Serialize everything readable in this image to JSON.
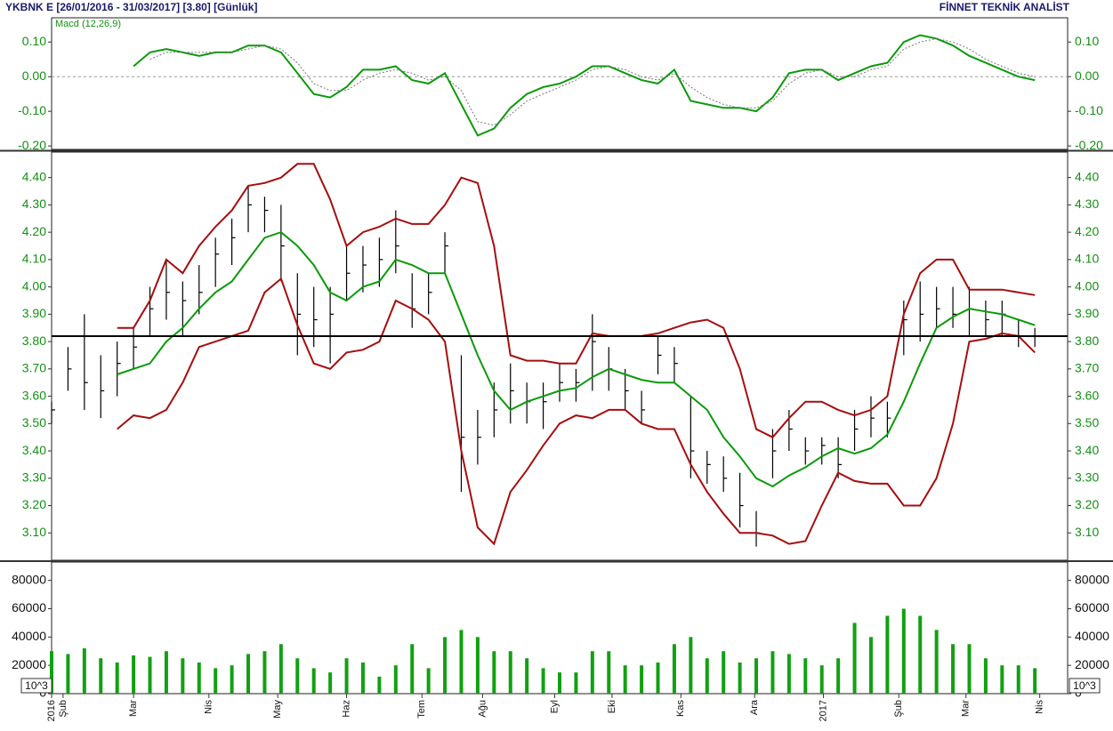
{
  "header": {
    "symbol": "YKBNK E  [26/01/2016 - 31/03/2017]  [3.80]  [Günlük]",
    "brand": "FİNNET TEKNİK ANALİST"
  },
  "chart_data": [
    {
      "type": "line",
      "title": "Macd (12,26,9)",
      "ylim": [
        -0.21,
        0.17
      ],
      "yticks": [
        {
          "value": 0.1,
          "label": "0.10"
        },
        {
          "value": 0,
          "label": "0.00"
        },
        {
          "value": -0.1,
          "label": "-0.10"
        },
        {
          "value": -0.2,
          "label": "-0.20"
        }
      ],
      "series": [
        {
          "color": "#0a9a0a",
          "style": "solid",
          "values": [
            null,
            null,
            null,
            null,
            null,
            0.03,
            0.07,
            0.08,
            0.07,
            0.06,
            0.07,
            0.07,
            0.09,
            0.09,
            0.07,
            0.01,
            -0.05,
            -0.06,
            -0.03,
            0.02,
            0.02,
            0.03,
            -0.01,
            -0.02,
            0.01,
            -0.08,
            -0.17,
            -0.15,
            -0.09,
            -0.05,
            -0.03,
            -0.02,
            0.0,
            0.03,
            0.03,
            0.01,
            -0.01,
            -0.02,
            0.02,
            -0.07,
            -0.08,
            -0.09,
            -0.09,
            -0.1,
            -0.06,
            0.01,
            0.02,
            0.02,
            -0.01,
            0.01,
            0.03,
            0.04,
            0.1,
            0.12,
            0.11,
            0.09,
            0.06,
            0.04,
            0.02,
            0.0,
            -0.01
          ]
        },
        {
          "color": "#777777",
          "style": "dotted",
          "values": [
            null,
            null,
            null,
            null,
            null,
            null,
            0.05,
            0.07,
            0.07,
            0.07,
            0.07,
            0.07,
            0.08,
            0.09,
            0.08,
            0.04,
            -0.02,
            -0.04,
            -0.04,
            -0.01,
            0.01,
            0.02,
            0.01,
            -0.01,
            0.0,
            -0.04,
            -0.13,
            -0.14,
            -0.11,
            -0.07,
            -0.05,
            -0.03,
            -0.01,
            0.02,
            0.03,
            0.02,
            0.0,
            -0.01,
            0.01,
            -0.03,
            -0.06,
            -0.08,
            -0.09,
            -0.09,
            -0.07,
            -0.02,
            0.01,
            0.02,
            0.0,
            0.0,
            0.02,
            0.03,
            0.08,
            0.1,
            0.11,
            0.1,
            0.08,
            0.05,
            0.03,
            0.01,
            0.0
          ]
        }
      ]
    },
    {
      "type": "hlc",
      "color": "#000000",
      "ylim": [
        3.0,
        4.49
      ],
      "yticks": [
        {
          "value": 4.4,
          "label": "4.40"
        },
        {
          "value": 4.3,
          "label": "4.30"
        },
        {
          "value": 4.2,
          "label": "4.20"
        },
        {
          "value": 4.1,
          "label": "4.10"
        },
        {
          "value": 4.0,
          "label": "4.00"
        },
        {
          "value": 3.9,
          "label": "3.90"
        },
        {
          "value": 3.8,
          "label": "3.80"
        },
        {
          "value": 3.7,
          "label": "3.70"
        },
        {
          "value": 3.6,
          "label": "3.60"
        },
        {
          "value": 3.5,
          "label": "3.50"
        },
        {
          "value": 3.4,
          "label": "3.40"
        },
        {
          "value": 3.3,
          "label": "3.30"
        },
        {
          "value": 3.2,
          "label": "3.20"
        },
        {
          "value": 3.1,
          "label": "3.10"
        }
      ],
      "high": [
        3.58,
        3.78,
        3.9,
        3.75,
        3.8,
        3.85,
        4.0,
        4.1,
        4.02,
        4.08,
        4.18,
        4.25,
        4.37,
        4.33,
        4.3,
        4.05,
        4.0,
        4.0,
        4.15,
        4.15,
        4.18,
        4.28,
        4.05,
        4.05,
        4.2,
        3.75,
        3.55,
        3.65,
        3.72,
        3.65,
        3.65,
        3.72,
        3.7,
        3.9,
        3.78,
        3.7,
        3.62,
        3.82,
        3.78,
        3.6,
        3.4,
        3.38,
        3.32,
        3.18,
        3.48,
        3.55,
        3.45,
        3.45,
        3.45,
        3.55,
        3.6,
        3.58,
        3.95,
        4.02,
        4.0,
        4.0,
        4.0,
        3.95,
        3.95,
        3.88,
        3.85
      ],
      "low": [
        3.5,
        3.62,
        3.55,
        3.52,
        3.6,
        3.7,
        3.82,
        3.88,
        3.82,
        3.9,
        4.0,
        4.08,
        4.2,
        4.2,
        4.02,
        3.75,
        3.78,
        3.72,
        3.95,
        3.98,
        4.0,
        4.05,
        3.85,
        3.9,
        4.05,
        3.25,
        3.35,
        3.45,
        3.5,
        3.5,
        3.48,
        3.58,
        3.58,
        3.62,
        3.62,
        3.55,
        3.5,
        3.68,
        3.65,
        3.3,
        3.28,
        3.25,
        3.12,
        3.05,
        3.3,
        3.4,
        3.35,
        3.35,
        3.3,
        3.4,
        3.45,
        3.45,
        3.75,
        3.8,
        3.85,
        3.85,
        3.82,
        3.82,
        3.82,
        3.78,
        3.78
      ],
      "close": [
        3.55,
        3.7,
        3.65,
        3.62,
        3.72,
        3.78,
        3.92,
        3.98,
        3.95,
        3.98,
        4.12,
        4.18,
        4.3,
        4.28,
        4.15,
        3.9,
        3.88,
        3.9,
        4.05,
        4.08,
        4.1,
        4.15,
        3.92,
        3.98,
        4.15,
        3.45,
        3.45,
        3.55,
        3.62,
        3.58,
        3.58,
        3.65,
        3.65,
        3.8,
        3.7,
        3.62,
        3.55,
        3.75,
        3.72,
        3.4,
        3.35,
        3.3,
        3.2,
        3.1,
        3.4,
        3.48,
        3.4,
        3.42,
        3.35,
        3.48,
        3.52,
        3.52,
        3.88,
        3.9,
        3.92,
        3.9,
        3.92,
        3.88,
        3.9,
        3.82,
        3.82
      ],
      "reference_line": 3.82,
      "series": [
        {
          "color": "#a50e0e",
          "style": "solid",
          "values": [
            null,
            null,
            null,
            null,
            3.85,
            3.85,
            3.95,
            4.1,
            4.05,
            4.15,
            4.22,
            4.28,
            4.37,
            4.38,
            4.4,
            4.45,
            4.45,
            4.32,
            4.15,
            4.2,
            4.22,
            4.25,
            4.23,
            4.23,
            4.3,
            4.4,
            4.38,
            4.15,
            3.75,
            3.73,
            3.73,
            3.72,
            3.72,
            3.83,
            3.82,
            3.82,
            3.82,
            3.83,
            3.85,
            3.87,
            3.88,
            3.85,
            3.7,
            3.48,
            3.45,
            3.52,
            3.58,
            3.58,
            3.55,
            3.53,
            3.55,
            3.6,
            3.9,
            4.05,
            4.1,
            4.1,
            3.99,
            3.99,
            3.99,
            3.98,
            3.97
          ]
        },
        {
          "color": "#0a9a0a",
          "style": "solid",
          "values": [
            null,
            null,
            null,
            null,
            3.68,
            3.7,
            3.72,
            3.8,
            3.85,
            3.92,
            3.98,
            4.02,
            4.1,
            4.18,
            4.2,
            4.15,
            4.08,
            3.98,
            3.95,
            4.0,
            4.02,
            4.1,
            4.08,
            4.05,
            4.05,
            3.9,
            3.75,
            3.62,
            3.55,
            3.58,
            3.6,
            3.62,
            3.63,
            3.67,
            3.7,
            3.68,
            3.66,
            3.65,
            3.65,
            3.6,
            3.55,
            3.45,
            3.38,
            3.3,
            3.27,
            3.31,
            3.34,
            3.38,
            3.41,
            3.39,
            3.41,
            3.46,
            3.58,
            3.72,
            3.85,
            3.89,
            3.92,
            3.91,
            3.9,
            3.88,
            3.86
          ]
        },
        {
          "color": "#a50e0e",
          "style": "solid",
          "values": [
            null,
            null,
            null,
            null,
            3.48,
            3.53,
            3.52,
            3.55,
            3.65,
            3.78,
            3.8,
            3.82,
            3.84,
            3.98,
            4.03,
            3.86,
            3.72,
            3.7,
            3.76,
            3.77,
            3.8,
            3.95,
            3.92,
            3.88,
            3.8,
            3.4,
            3.12,
            3.06,
            3.25,
            3.33,
            3.42,
            3.5,
            3.53,
            3.52,
            3.55,
            3.55,
            3.5,
            3.48,
            3.48,
            3.35,
            3.25,
            3.17,
            3.1,
            3.1,
            3.09,
            3.06,
            3.07,
            3.2,
            3.32,
            3.29,
            3.28,
            3.28,
            3.2,
            3.2,
            3.3,
            3.5,
            3.8,
            3.81,
            3.83,
            3.82,
            3.76
          ]
        }
      ]
    },
    {
      "type": "bar",
      "color": "#12a012",
      "unit_label": "10^3",
      "ylim": [
        0,
        93000
      ],
      "yticks": [
        0,
        20000,
        40000,
        60000,
        80000
      ],
      "values": [
        30000,
        28000,
        32000,
        25000,
        22000,
        27000,
        26000,
        30000,
        25000,
        22000,
        18000,
        20000,
        28000,
        30000,
        35000,
        25000,
        18000,
        15000,
        25000,
        22000,
        12000,
        20000,
        35000,
        18000,
        40000,
        45000,
        40000,
        30000,
        30000,
        25000,
        18000,
        15000,
        15000,
        30000,
        30000,
        20000,
        20000,
        22000,
        35000,
        40000,
        25000,
        30000,
        22000,
        25000,
        30000,
        28000,
        25000,
        20000,
        25000,
        50000,
        40000,
        55000,
        60000,
        55000,
        45000,
        35000,
        35000,
        25000,
        20000,
        20000,
        18000
      ],
      "xlim": [
        0,
        62
      ],
      "xticks": [
        {
          "value": 0,
          "label": "2016"
        },
        {
          "value": 0.7,
          "label": "Şub"
        },
        {
          "value": 5.0,
          "label": "Mar"
        },
        {
          "value": 9.6,
          "label": "Nis"
        },
        {
          "value": 13.8,
          "label": "May"
        },
        {
          "value": 18.0,
          "label": "Haz"
        },
        {
          "value": 22.6,
          "label": "Tem"
        },
        {
          "value": 26.3,
          "label": "Ağu"
        },
        {
          "value": 30.7,
          "label": "Eyl"
        },
        {
          "value": 34.2,
          "label": "Eki"
        },
        {
          "value": 38.4,
          "label": "Kas"
        },
        {
          "value": 42.9,
          "label": "Ara"
        },
        {
          "value": 47.1,
          "label": "2017"
        },
        {
          "value": 51.7,
          "label": "Şub"
        },
        {
          "value": 55.8,
          "label": "Mar"
        },
        {
          "value": 60.3,
          "label": "Nis"
        }
      ]
    }
  ]
}
